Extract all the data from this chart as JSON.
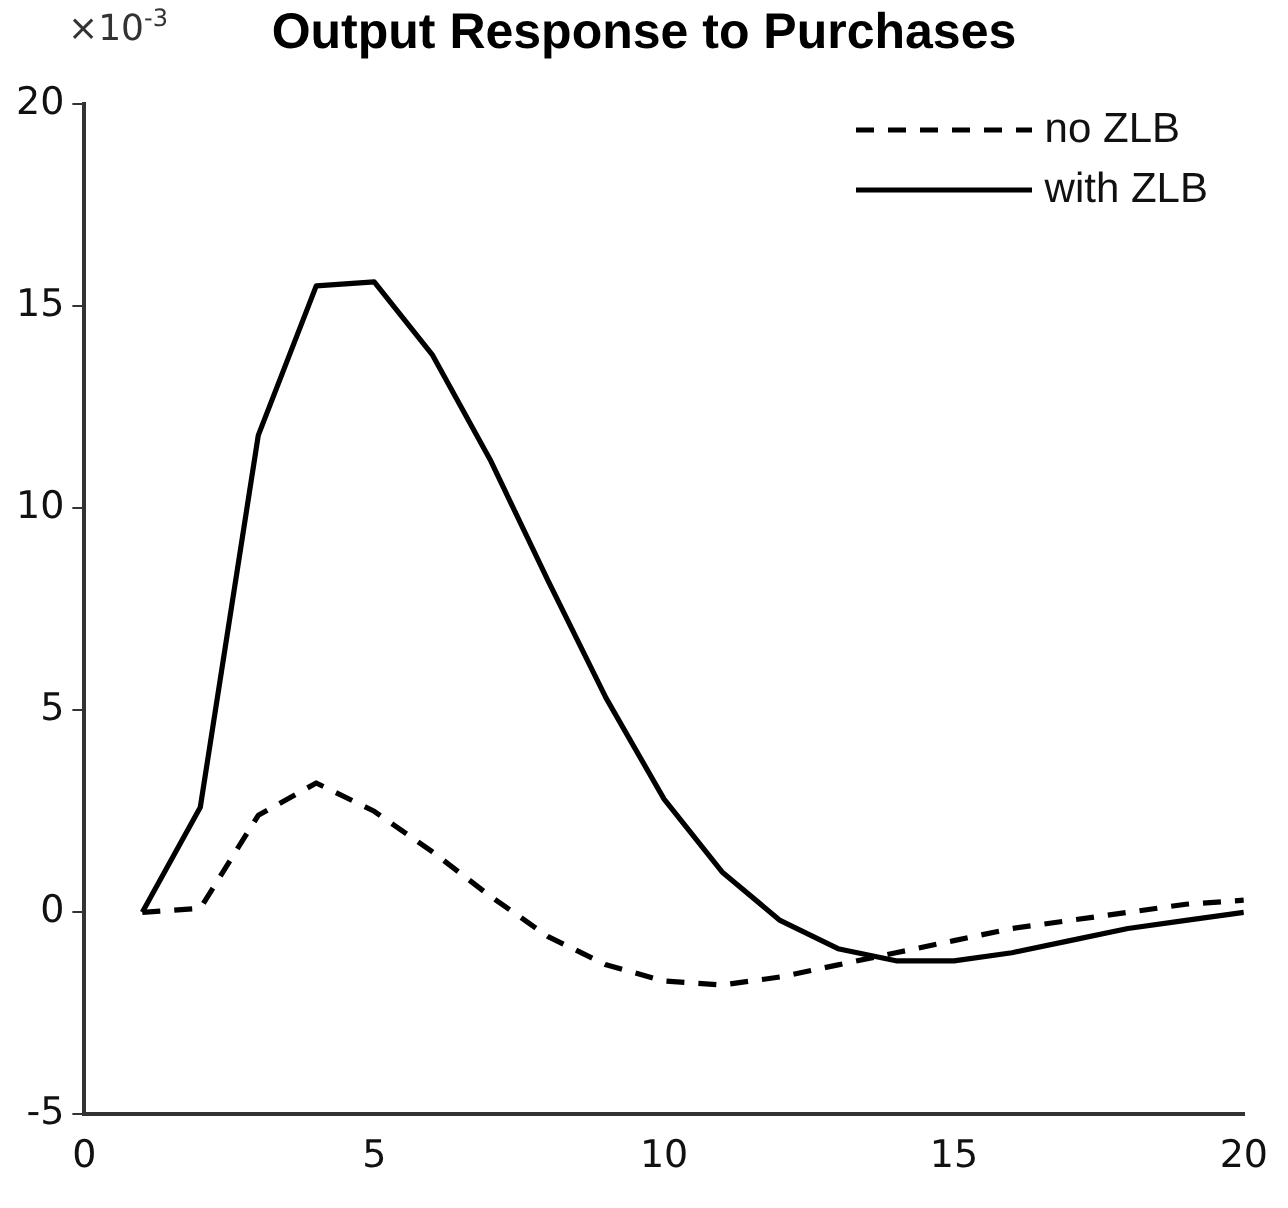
{
  "chart_data": {
    "type": "line",
    "title": "Output Response to Purchases",
    "annotations": [
      "×10$^{-3}$"
    ],
    "x": [
      1,
      2,
      3,
      4,
      5,
      6,
      7,
      8,
      9,
      10,
      11,
      12,
      13,
      14,
      15,
      16,
      17,
      18,
      19,
      20
    ],
    "series": [
      {
        "name": "no ZLB",
        "color": "#000000",
        "line_style": "dashed",
        "values": [
          0,
          0.1,
          2.4,
          3.2,
          2.5,
          1.5,
          0.4,
          -0.6,
          -1.3,
          -1.7,
          -1.8,
          -1.6,
          -1.3,
          -1.0,
          -0.7,
          -0.4,
          -0.2,
          0.0,
          0.2,
          0.3
        ]
      },
      {
        "name": "with ZLB",
        "color": "#000000",
        "line_style": "solid",
        "values": [
          0,
          2.6,
          11.8,
          15.5,
          15.6,
          13.8,
          11.2,
          8.2,
          5.3,
          2.8,
          1.0,
          -0.2,
          -0.9,
          -1.2,
          -1.2,
          -1.0,
          -0.7,
          -0.4,
          -0.2,
          0.0
        ]
      }
    ],
    "xlim": [
      0,
      20
    ],
    "xticks": [
      0,
      5,
      10,
      15,
      20
    ],
    "ylim": [
      -5,
      20
    ],
    "yticks": [
      -5,
      0,
      5,
      10,
      15,
      20
    ],
    "grid": false,
    "legend": "top right",
    "marker": "none"
  }
}
